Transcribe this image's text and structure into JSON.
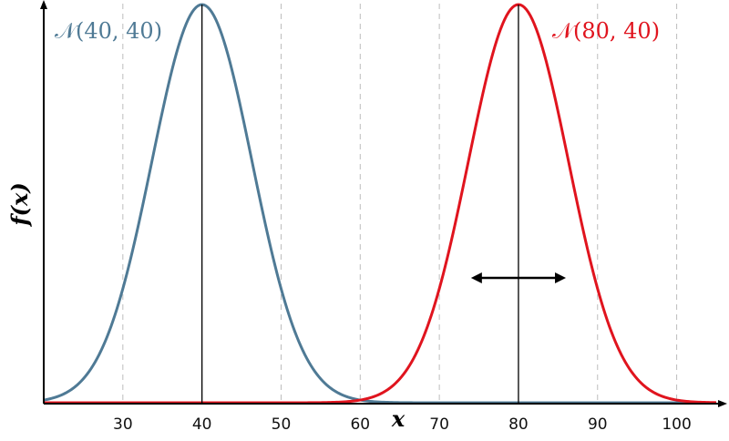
{
  "chart_data": {
    "type": "line",
    "xlabel": "x",
    "ylabel": "f(x)",
    "xlim": [
      20,
      105
    ],
    "x_ticks": [
      "30",
      "40",
      "50",
      "60",
      "70",
      "80",
      "90",
      "100"
    ],
    "grid": "vertical dashed",
    "series": [
      {
        "name": "𝒩(40, 40)",
        "mean": 40,
        "variance": 40,
        "color": "#4f7a95"
      },
      {
        "name": "𝒩(80, 40)",
        "mean": 80,
        "variance": 40,
        "color": "#e0141e"
      }
    ],
    "annotations": [
      {
        "type": "double-arrow",
        "from_x": 74,
        "to_x": 86,
        "label": ""
      }
    ]
  }
}
